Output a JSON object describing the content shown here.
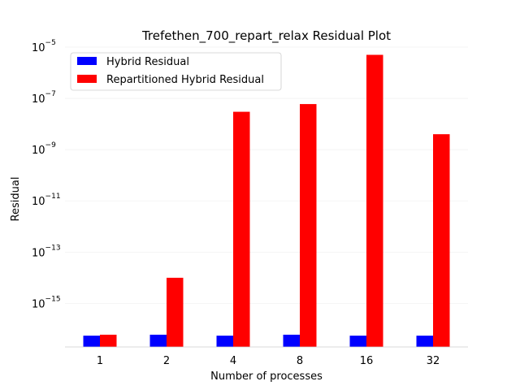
{
  "chart_data": {
    "type": "bar",
    "title": "Trefethen_700_repart_relax Residual Plot",
    "xlabel": "Number of processes",
    "ylabel": "Residual",
    "yscale": "log",
    "ylim": [
      2e-17,
      1e-05
    ],
    "yticks": [
      {
        "value": 1e-05,
        "base": "10",
        "exp": "−5"
      },
      {
        "value": 1e-07,
        "base": "10",
        "exp": "−7"
      },
      {
        "value": 1e-09,
        "base": "10",
        "exp": "−9"
      },
      {
        "value": 1e-11,
        "base": "10",
        "exp": "−11"
      },
      {
        "value": 1e-13,
        "base": "10",
        "exp": "−13"
      },
      {
        "value": 1e-15,
        "base": "10",
        "exp": "−15"
      }
    ],
    "grid": true,
    "categories": [
      "1",
      "2",
      "4",
      "8",
      "16",
      "32"
    ],
    "series": [
      {
        "name": "Hybrid Residual",
        "color": "#0000ff",
        "values": [
          5.5e-17,
          6e-17,
          5.5e-17,
          6e-17,
          5.5e-17,
          5.5e-17
        ]
      },
      {
        "name": "Repartitioned Hybrid Residual",
        "color": "#ff0000",
        "values": [
          6e-17,
          1e-14,
          3e-08,
          6e-08,
          5e-06,
          4e-09
        ]
      }
    ],
    "legend_position": "top-left"
  }
}
